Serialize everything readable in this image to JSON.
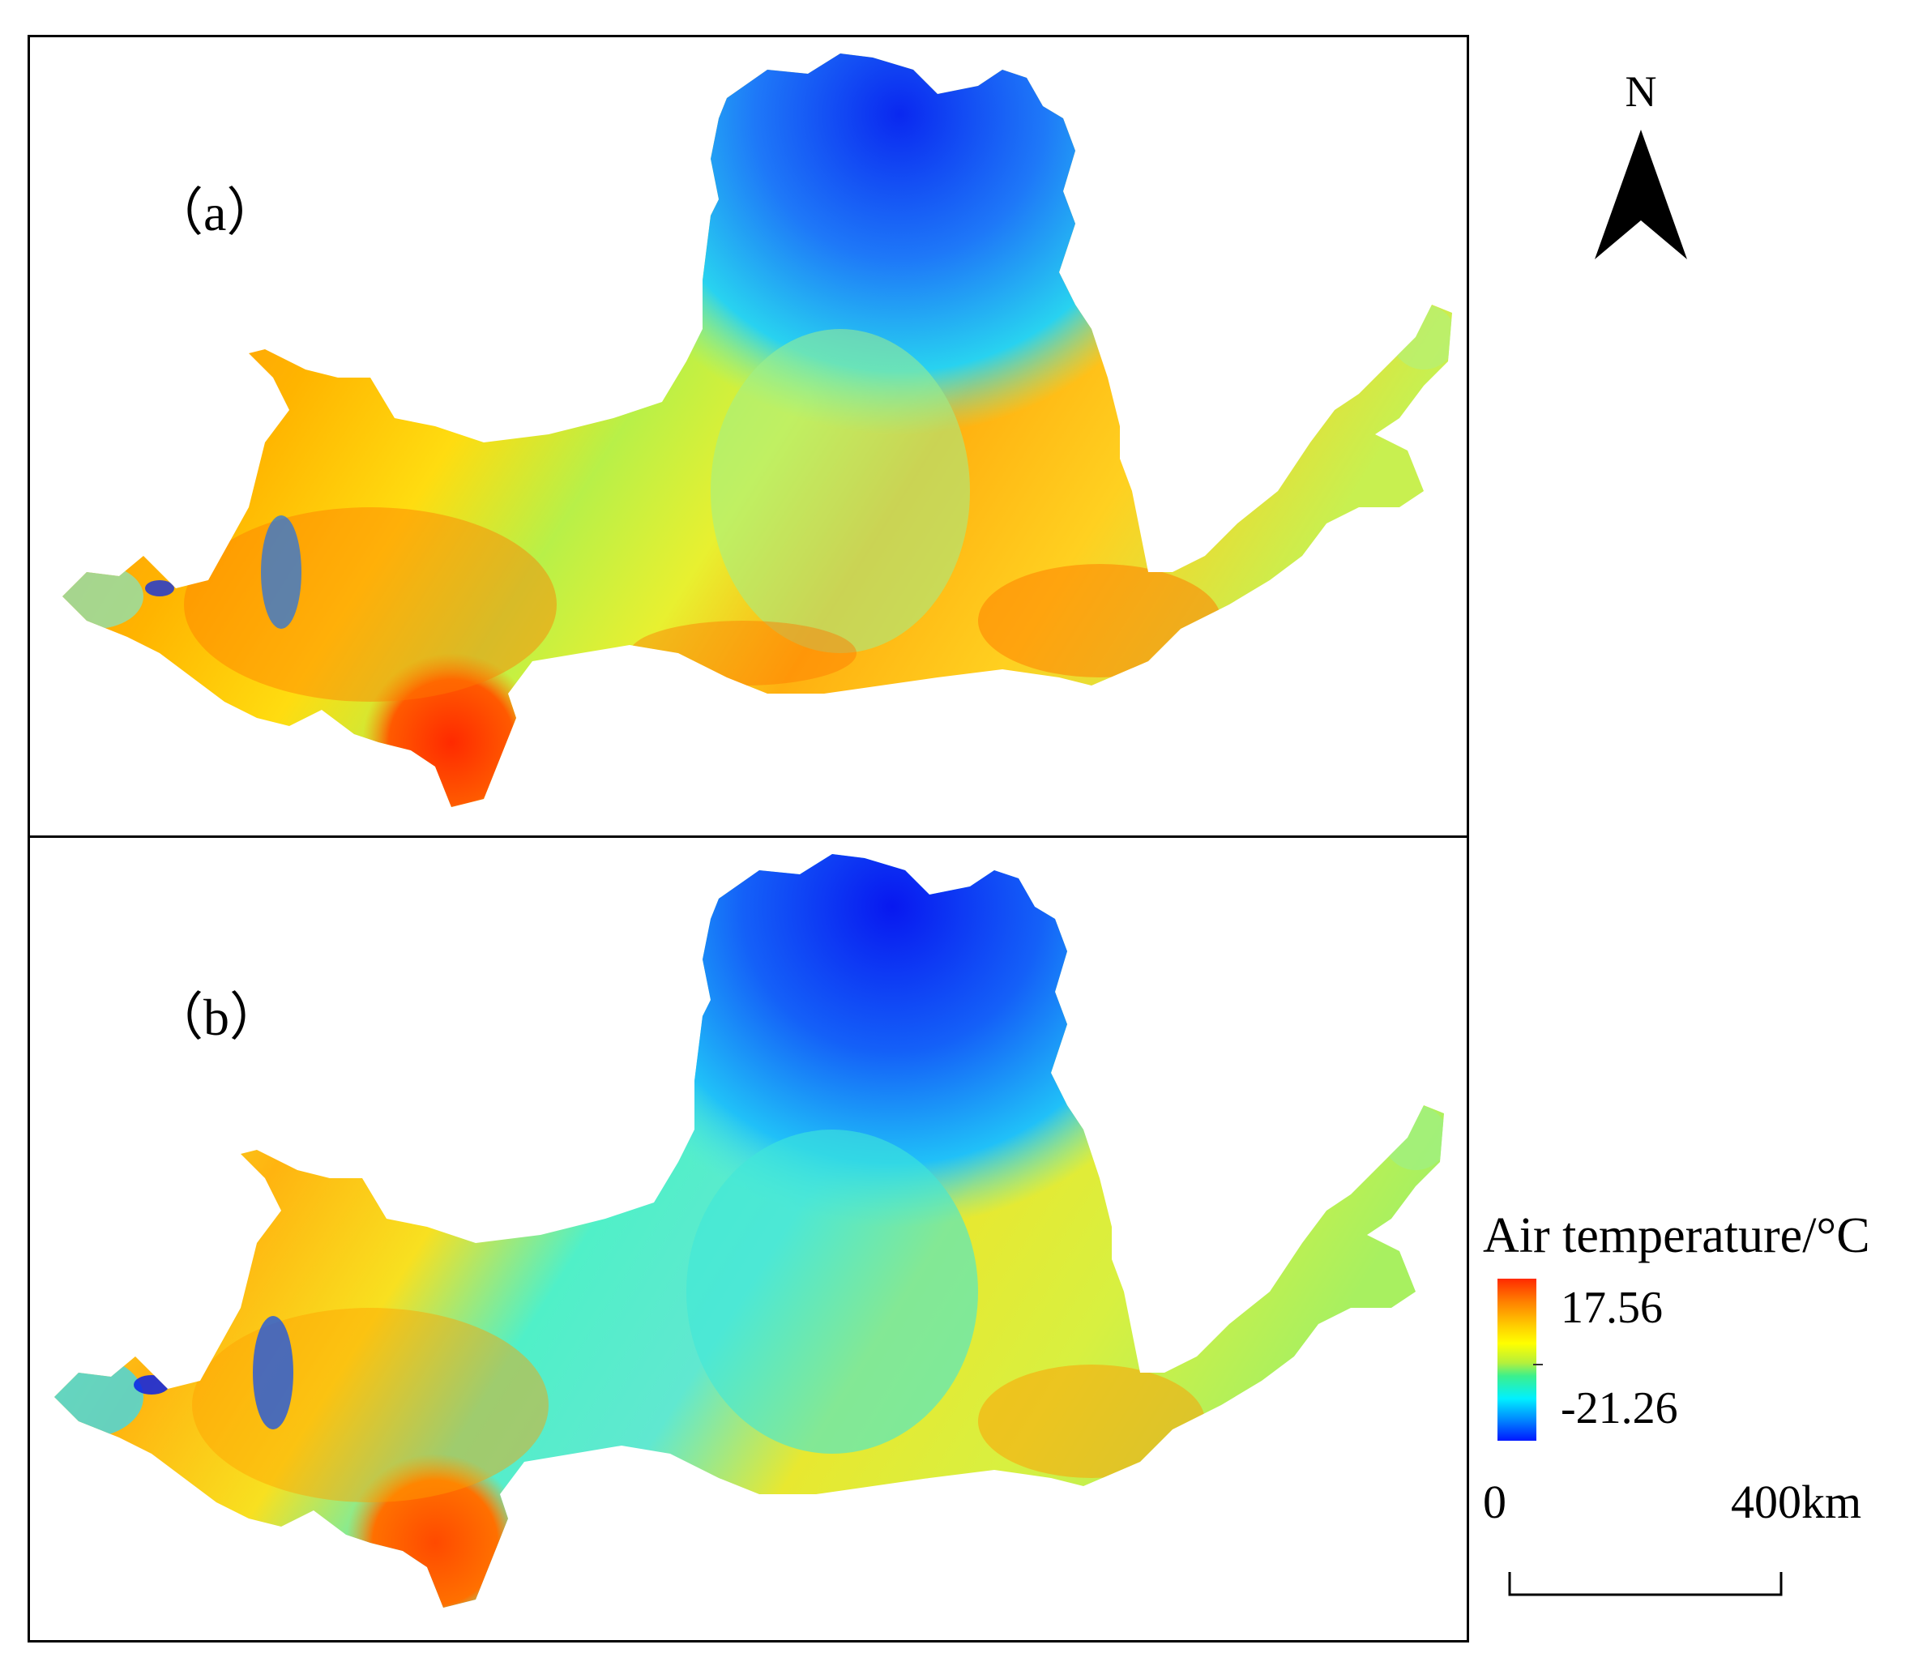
{
  "panels": [
    {
      "label": "（a）"
    },
    {
      "label": "（b）"
    }
  ],
  "north_arrow": {
    "letter": "N"
  },
  "legend": {
    "title": "Air temperature/°C",
    "max_label": "17.56",
    "min_label": "-21.26",
    "colors": [
      "#ff2a00",
      "#ff7f00",
      "#ffd200",
      "#ffff00",
      "#b4f03c",
      "#3cf08c",
      "#00f0ff",
      "#0080ff",
      "#0018ff"
    ]
  },
  "scale_bar": {
    "zero_label": "0",
    "max_label": "400km"
  }
}
